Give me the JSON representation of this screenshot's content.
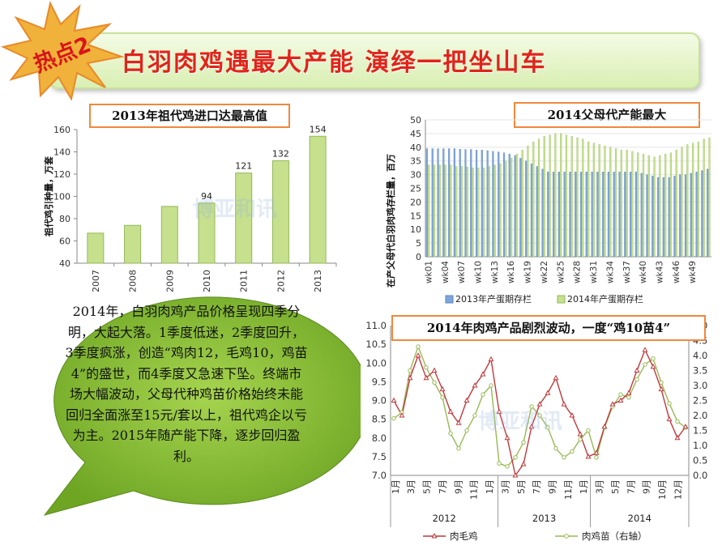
{
  "header": {
    "badge": "热点2",
    "title": "白羽肉鸡遇最大产能  演绎一把坐山车"
  },
  "body_text": "2014年，白羽肉鸡产品价格呈现四季分明，大起大落。1季度低迷，2季度回升，3季度疯涨，创造“鸡肉12，毛鸡10，鸡苗4”的盛世，而4季度又急速下坠。终端市场大幅波动，父母代种鸡苗价格始终未能回归全面涨至15元/套以上，祖代鸡企以亏为主。2015年随产能下降，逐步回归盈利。",
  "colors": {
    "accent": "#e0241a",
    "bar_green": "#c6e08e",
    "bar_blue": "#7fa6d8",
    "line_red": "#c0393b",
    "line_green": "#98b954"
  },
  "chart_data": [
    {
      "type": "bar",
      "title": "2013年祖代鸡进口达最高值",
      "ylabel": "祖代鸡引种量，万套",
      "categories": [
        "2007",
        "2008",
        "2009",
        "2010",
        "2011",
        "2012",
        "2013"
      ],
      "values": [
        67,
        74,
        91,
        94,
        121,
        132,
        154
      ],
      "data_labels": [
        "",
        "",
        "",
        "94",
        "121",
        "132",
        "154"
      ],
      "ylim": [
        40,
        160
      ],
      "yticks": [
        "40",
        "60",
        "80",
        "100",
        "120",
        "140",
        "160"
      ]
    },
    {
      "type": "bar",
      "title": "2014父母代产能最大",
      "ylabel": "在产父母代白羽肉鸡存栏量，百万",
      "ylim": [
        0,
        50
      ],
      "yticks": [
        "0",
        "5",
        "10",
        "15",
        "20",
        "25",
        "30",
        "35",
        "40",
        "45",
        "50"
      ],
      "xticks": [
        "wk01",
        "wk04",
        "wk07",
        "wk10",
        "wk13",
        "wk16",
        "wk19",
        "wk22",
        "wk25",
        "wk28",
        "wk31",
        "wk34",
        "wk37",
        "wk40",
        "wk43",
        "wk46",
        "wk49"
      ],
      "x": [
        1,
        2,
        3,
        4,
        5,
        6,
        7,
        8,
        9,
        10,
        11,
        12,
        13,
        14,
        15,
        16,
        17,
        18,
        19,
        20,
        21,
        22,
        23,
        24,
        25,
        26,
        27,
        28,
        29,
        30,
        31,
        32,
        33,
        34,
        35,
        36,
        37,
        38,
        39,
        40,
        41,
        42,
        43,
        44,
        45,
        46,
        47,
        48,
        49,
        50,
        51,
        52
      ],
      "series": [
        {
          "name": "2013年产蛋期存栏",
          "values": [
            39.5,
            39.5,
            39.5,
            39.5,
            39.5,
            39.5,
            39.3,
            39.2,
            39.2,
            39,
            39,
            38.8,
            38.5,
            38.3,
            38,
            37.5,
            37,
            36,
            35,
            34,
            33,
            32,
            31,
            31,
            31,
            31,
            31,
            31,
            31,
            31,
            31,
            31,
            31,
            31,
            31,
            31,
            31,
            31,
            31,
            30.5,
            30,
            29.5,
            29,
            29,
            29,
            29.5,
            30,
            30,
            30.5,
            31,
            31.5,
            32
          ]
        },
        {
          "name": "2014年产蛋期存栏",
          "values": [
            33.5,
            33.5,
            33.5,
            33.5,
            33.5,
            33,
            33,
            32.8,
            32.5,
            32.5,
            32.5,
            33,
            33.5,
            34,
            35,
            36,
            37.5,
            39,
            40.5,
            42,
            43,
            44,
            44.5,
            45,
            45,
            44.5,
            44,
            43.5,
            43,
            42,
            41.5,
            41,
            40.5,
            40,
            39.5,
            39,
            39,
            38.5,
            38,
            37.5,
            37,
            36.5,
            37,
            37.5,
            38,
            39,
            40,
            41,
            41.5,
            42,
            43,
            43.5
          ]
        }
      ]
    },
    {
      "type": "line",
      "title": "2014年肉鸡产品剧烈波动，一度“鸡10苗4”",
      "ylim": [
        7.0,
        11.0
      ],
      "yticks": [
        "7.0",
        "7.5",
        "8.0",
        "8.5",
        "9.0",
        "9.5",
        "10.0",
        "10.5",
        "11.0"
      ],
      "y2lim": [
        0.0,
        5.0
      ],
      "y2ticks": [
        "0.0",
        "0.5",
        "1.0",
        "1.5",
        "2.0",
        "2.5",
        "3.0",
        "3.5",
        "4.0",
        "4.5",
        "5.0"
      ],
      "month_ticks": [
        "1月",
        "3月",
        "5月",
        "7月",
        "9月",
        "11月",
        "1月",
        "3月",
        "5月",
        "7月",
        "9月",
        "11月",
        "1月",
        "3月",
        "5月",
        "7月",
        "9月",
        "10月",
        "12月"
      ],
      "year_labels": [
        "2012",
        "2013",
        "2014"
      ],
      "x": [
        0,
        1,
        2,
        3,
        4,
        5,
        6,
        7,
        8,
        9,
        10,
        11,
        12,
        13,
        14,
        15,
        16,
        17,
        18,
        19,
        20,
        21,
        22,
        23,
        24,
        25,
        26,
        27,
        28,
        29,
        30,
        31,
        32,
        33,
        34,
        35,
        36
      ],
      "series": [
        {
          "name": "肉毛鸡",
          "axis": "left",
          "values": [
            9.0,
            8.6,
            9.6,
            10.2,
            9.6,
            9.8,
            9.3,
            8.7,
            8.4,
            9.0,
            9.4,
            9.7,
            10.1,
            8.7,
            8.0,
            7.0,
            7.3,
            8.3,
            8.9,
            9.2,
            9.6,
            8.9,
            8.6,
            8.1,
            7.5,
            7.6,
            8.3,
            8.9,
            9.0,
            9.2,
            9.8,
            10.35,
            9.9,
            9.3,
            8.5,
            8.0,
            8.3
          ]
        },
        {
          "name": "肉鸡苗（右轴）",
          "axis": "right",
          "values": [
            1.9,
            2.1,
            3.5,
            4.3,
            3.6,
            3.1,
            2.6,
            1.4,
            0.9,
            1.5,
            2.0,
            2.7,
            3.0,
            0.4,
            0.3,
            0.6,
            1.1,
            2.3,
            2.0,
            1.6,
            0.9,
            0.6,
            0.8,
            1.2,
            1.5,
            0.6,
            1.6,
            2.3,
            2.7,
            2.6,
            3.2,
            3.7,
            3.9,
            3.1,
            2.4,
            1.8,
            1.6
          ]
        }
      ]
    }
  ]
}
